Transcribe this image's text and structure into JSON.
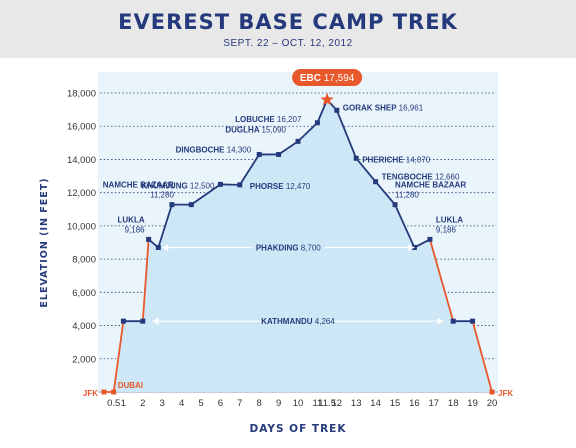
{
  "title": "EVEREST BASE CAMP TREK",
  "subtitle": "SEPT. 22 – OCT. 12, 2012",
  "colors": {
    "navy": "#253a7c",
    "orange": "#e8582a",
    "fill": "#cde7f6",
    "plot_bg": "#e9f4fb",
    "grid": "#2d3f73"
  },
  "chart_data": {
    "type": "area",
    "title": "EVEREST BASE CAMP TREK",
    "subtitle": "SEPT. 22 – OCT. 12, 2012",
    "xlabel": "DAYS OF TREK",
    "ylabel": "ELEVATION (IN FEET)",
    "ylim": [
      0,
      18000
    ],
    "xlim": [
      0,
      20
    ],
    "grid": true,
    "x_ticks": [
      {
        "label": "0.5",
        "x": 0.5
      },
      {
        "label": "1",
        "x": 1
      },
      {
        "label": "2",
        "x": 2
      },
      {
        "label": "3",
        "x": 3
      },
      {
        "label": "4",
        "x": 4
      },
      {
        "label": "5",
        "x": 5
      },
      {
        "label": "6",
        "x": 6
      },
      {
        "label": "7",
        "x": 7
      },
      {
        "label": "8",
        "x": 8
      },
      {
        "label": "9",
        "x": 9
      },
      {
        "label": "10",
        "x": 10
      },
      {
        "label": "11",
        "x": 11
      },
      {
        "label": "11.5",
        "x": 11.5
      },
      {
        "label": "12",
        "x": 12
      },
      {
        "label": "13",
        "x": 13
      },
      {
        "label": "14",
        "x": 14
      },
      {
        "label": "15",
        "x": 15
      },
      {
        "label": "16",
        "x": 16
      },
      {
        "label": "17",
        "x": 17
      },
      {
        "label": "18",
        "x": 18
      },
      {
        "label": "19",
        "x": 19
      },
      {
        "label": "20",
        "x": 20
      }
    ],
    "y_ticks": [
      "18,000",
      "16,000",
      "14,000",
      "12,000",
      "10,000",
      "8,000",
      "6,000",
      "4,000",
      "2,000"
    ],
    "y_tick_values": [
      18000,
      16000,
      14000,
      12000,
      10000,
      8000,
      6000,
      4000,
      2000
    ],
    "points": [
      {
        "x": 0,
        "y": 0,
        "segment": "flight"
      },
      {
        "x": 0.5,
        "y": 0,
        "segment": "flight"
      },
      {
        "x": 1,
        "y": 4264,
        "segment": "flight"
      },
      {
        "x": 2,
        "y": 4264,
        "segment": "flight"
      },
      {
        "x": 2.3,
        "y": 9186,
        "segment": "trek"
      },
      {
        "x": 2.8,
        "y": 8700,
        "segment": "trek"
      },
      {
        "x": 3.5,
        "y": 11280,
        "segment": "trek"
      },
      {
        "x": 4.5,
        "y": 11280,
        "segment": "trek"
      },
      {
        "x": 6,
        "y": 12500,
        "segment": "trek"
      },
      {
        "x": 7,
        "y": 12470,
        "segment": "trek"
      },
      {
        "x": 8,
        "y": 14300,
        "segment": "trek"
      },
      {
        "x": 9,
        "y": 14300,
        "segment": "trek"
      },
      {
        "x": 10,
        "y": 15090,
        "segment": "trek"
      },
      {
        "x": 11,
        "y": 16207,
        "segment": "trek"
      },
      {
        "x": 11.5,
        "y": 17594,
        "segment": "trek"
      },
      {
        "x": 12,
        "y": 16961,
        "segment": "trek"
      },
      {
        "x": 13,
        "y": 14070,
        "segment": "trek"
      },
      {
        "x": 14,
        "y": 12660,
        "segment": "trek"
      },
      {
        "x": 15,
        "y": 11280,
        "segment": "trek"
      },
      {
        "x": 16,
        "y": 8700,
        "segment": "trek"
      },
      {
        "x": 16.8,
        "y": 9186,
        "segment": "trek"
      },
      {
        "x": 18,
        "y": 4264,
        "segment": "flight"
      },
      {
        "x": 19,
        "y": 4264,
        "segment": "flight"
      },
      {
        "x": 20,
        "y": 0,
        "segment": "flight"
      }
    ],
    "peak": {
      "label": "EBC",
      "value": "17,594",
      "x": 11.5,
      "y": 17594
    },
    "annotations": [
      {
        "name": "JFK",
        "value": "",
        "x": 0,
        "y": 0,
        "anchor": "end",
        "color": "orange",
        "dx": -6,
        "dy": 4
      },
      {
        "name": "DUBAI",
        "value": "",
        "x": 0.5,
        "y": 0,
        "anchor": "start",
        "color": "orange",
        "dx": 4,
        "dy": -4
      },
      {
        "name": "LUKLA",
        "value": "9,186",
        "x": 2.3,
        "y": 9186,
        "anchor": "end",
        "color": "navy",
        "dx": -4,
        "dy": -8,
        "stack": true
      },
      {
        "name": "NAMCHE BAZAAR",
        "value": "11,280",
        "x": 3.5,
        "y": 11280,
        "anchor": "end",
        "color": "navy",
        "dx": 2,
        "dy": -8,
        "stack": true
      },
      {
        "name": "KHUMJUNG",
        "value": "12,500",
        "x": 6,
        "y": 12500,
        "anchor": "end",
        "color": "navy",
        "dx": -6,
        "dy": 4
      },
      {
        "name": "DINGBOCHE",
        "value": "14,300",
        "x": 8,
        "y": 14300,
        "anchor": "end",
        "color": "navy",
        "dx": -8,
        "dy": -2
      },
      {
        "name": "DUGLHA",
        "value": "15,090",
        "x": 10,
        "y": 15090,
        "anchor": "end",
        "color": "navy",
        "dx": -12,
        "dy": -9
      },
      {
        "name": "LOBUCHE",
        "value": "16,207",
        "x": 11,
        "y": 16207,
        "anchor": "end",
        "color": "navy",
        "dx": -16,
        "dy": -1
      },
      {
        "name": "GORAK SHEP",
        "value": "16,961",
        "x": 12,
        "y": 16961,
        "anchor": "start",
        "color": "navy",
        "dx": 6,
        "dy": 0
      },
      {
        "name": "PHORSE",
        "value": "12,470",
        "x": 7,
        "y": 12470,
        "anchor": "start",
        "color": "navy",
        "dx": 10,
        "dy": 4
      },
      {
        "name": "PHERICHE",
        "value": "14,070",
        "x": 13,
        "y": 14070,
        "anchor": "start",
        "color": "navy",
        "dx": 6,
        "dy": 4
      },
      {
        "name": "TENGBOCHE",
        "value": "12,660",
        "x": 14,
        "y": 12660,
        "anchor": "start",
        "color": "navy",
        "dx": 6,
        "dy": -2
      },
      {
        "name": "NAMCHE BAZAAR",
        "value": "11,280",
        "x": 15,
        "y": 11280,
        "anchor": "start",
        "color": "navy",
        "dx": 0,
        "dy": -8,
        "stack": true
      },
      {
        "name": "LUKLA",
        "value": "9,186",
        "x": 16.8,
        "y": 9186,
        "anchor": "start",
        "color": "navy",
        "dx": 6,
        "dy": -8,
        "stack": true
      },
      {
        "name": "JFK",
        "value": "",
        "x": 20,
        "y": 0,
        "anchor": "start",
        "color": "orange",
        "dx": 6,
        "dy": 4
      }
    ],
    "spans": [
      {
        "name": "PHAKDING",
        "value": "8,700",
        "x_from": 3,
        "x_to": 16,
        "y": 8700
      },
      {
        "name": "KATHMANDU",
        "value": "4,264",
        "x_from": 2.5,
        "x_to": 17.5,
        "y": 4264
      }
    ]
  }
}
